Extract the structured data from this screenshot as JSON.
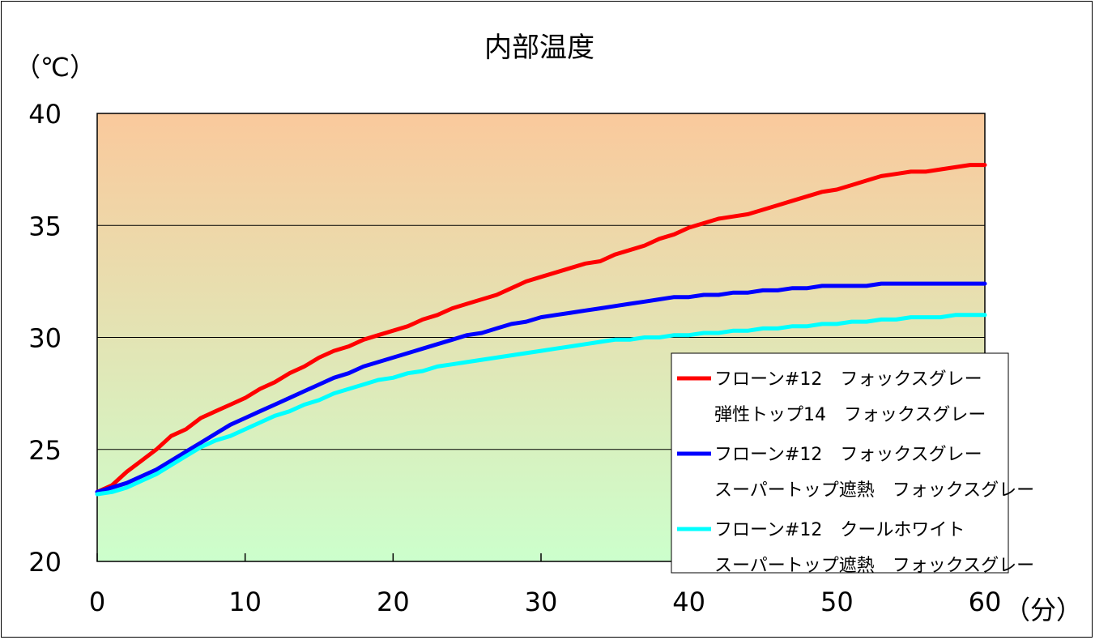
{
  "chart_data": {
    "type": "line",
    "title": "内部温度",
    "ylabel": "（℃）",
    "xlabel": "（分）",
    "xlim": [
      0,
      60
    ],
    "ylim": [
      20,
      40
    ],
    "x_ticks": [
      "0",
      "10",
      "20",
      "30",
      "40",
      "50",
      "60"
    ],
    "y_ticks": [
      "20",
      "25",
      "30",
      "35",
      "40"
    ],
    "grid": "horizontal",
    "background_gradient": {
      "top": "#FAC99C",
      "bottom": "#CCFFCC"
    },
    "legend_position": "bottom-right",
    "x": [
      0,
      1,
      2,
      3,
      4,
      5,
      6,
      7,
      8,
      9,
      10,
      11,
      12,
      13,
      14,
      15,
      16,
      17,
      18,
      19,
      20,
      21,
      22,
      23,
      24,
      25,
      26,
      27,
      28,
      29,
      30,
      31,
      32,
      33,
      34,
      35,
      36,
      37,
      38,
      39,
      40,
      41,
      42,
      43,
      44,
      45,
      46,
      47,
      48,
      49,
      50,
      51,
      52,
      53,
      54,
      55,
      56,
      57,
      58,
      59,
      60
    ],
    "series": [
      {
        "name_lines": [
          "フローン#12　フォックスグレー",
          "弾性トップ14　フォックスグレー"
        ],
        "color": "#FF0000",
        "values": [
          23.1,
          23.4,
          24.0,
          24.5,
          25.0,
          25.6,
          25.9,
          26.4,
          26.7,
          27.0,
          27.3,
          27.7,
          28.0,
          28.4,
          28.7,
          29.1,
          29.4,
          29.6,
          29.9,
          30.1,
          30.3,
          30.5,
          30.8,
          31.0,
          31.3,
          31.5,
          31.7,
          31.9,
          32.2,
          32.5,
          32.7,
          32.9,
          33.1,
          33.3,
          33.4,
          33.7,
          33.9,
          34.1,
          34.4,
          34.6,
          34.9,
          35.1,
          35.3,
          35.4,
          35.5,
          35.7,
          35.9,
          36.1,
          36.3,
          36.5,
          36.6,
          36.8,
          37.0,
          37.2,
          37.3,
          37.4,
          37.4,
          37.5,
          37.6,
          37.7,
          37.7
        ]
      },
      {
        "name_lines": [
          "フローン#12　フォックスグレー",
          "スーパートップ遮熱　フォックスグレー"
        ],
        "color": "#0000FF",
        "values": [
          23.1,
          23.3,
          23.5,
          23.8,
          24.1,
          24.5,
          24.9,
          25.3,
          25.7,
          26.1,
          26.4,
          26.7,
          27.0,
          27.3,
          27.6,
          27.9,
          28.2,
          28.4,
          28.7,
          28.9,
          29.1,
          29.3,
          29.5,
          29.7,
          29.9,
          30.1,
          30.2,
          30.4,
          30.6,
          30.7,
          30.9,
          31.0,
          31.1,
          31.2,
          31.3,
          31.4,
          31.5,
          31.6,
          31.7,
          31.8,
          31.8,
          31.9,
          31.9,
          32.0,
          32.0,
          32.1,
          32.1,
          32.2,
          32.2,
          32.3,
          32.3,
          32.3,
          32.3,
          32.4,
          32.4,
          32.4,
          32.4,
          32.4,
          32.4,
          32.4,
          32.4
        ]
      },
      {
        "name_lines": [
          "フローン#12　クールホワイト",
          "スーパートップ遮熱　フォックスグレー"
        ],
        "color": "#00FFFF",
        "values": [
          23.0,
          23.1,
          23.3,
          23.6,
          23.9,
          24.3,
          24.7,
          25.1,
          25.4,
          25.6,
          25.9,
          26.2,
          26.5,
          26.7,
          27.0,
          27.2,
          27.5,
          27.7,
          27.9,
          28.1,
          28.2,
          28.4,
          28.5,
          28.7,
          28.8,
          28.9,
          29.0,
          29.1,
          29.2,
          29.3,
          29.4,
          29.5,
          29.6,
          29.7,
          29.8,
          29.9,
          29.9,
          30.0,
          30.0,
          30.1,
          30.1,
          30.2,
          30.2,
          30.3,
          30.3,
          30.4,
          30.4,
          30.5,
          30.5,
          30.6,
          30.6,
          30.7,
          30.7,
          30.8,
          30.8,
          30.9,
          30.9,
          30.9,
          31.0,
          31.0,
          31.0
        ]
      }
    ]
  }
}
